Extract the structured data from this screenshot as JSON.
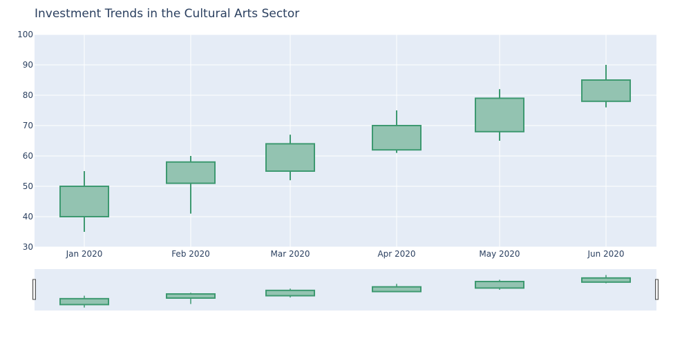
{
  "chart_data": {
    "type": "candlestick",
    "title": "Investment Trends in the Cultural Arts Sector",
    "xlabel": "",
    "ylabel": "",
    "categories": [
      "Jan 2020",
      "Feb 2020",
      "Mar 2020",
      "Apr 2020",
      "May 2020",
      "Jun 2020"
    ],
    "ohlc": [
      {
        "open": 40,
        "high": 55,
        "low": 35,
        "close": 50
      },
      {
        "open": 51,
        "high": 60,
        "low": 41,
        "close": 58
      },
      {
        "open": 55,
        "high": 67,
        "low": 52,
        "close": 64
      },
      {
        "open": 62,
        "high": 75,
        "low": 61,
        "close": 70
      },
      {
        "open": 68,
        "high": 82,
        "low": 65,
        "close": 79
      },
      {
        "open": 78,
        "high": 90,
        "low": 76,
        "close": 85
      }
    ],
    "ylim": [
      30,
      100
    ],
    "yticks": [
      30,
      40,
      50,
      60,
      70,
      80,
      90,
      100
    ],
    "grid": true,
    "rangeslider": true,
    "colors": {
      "plot_bg": "#e5ecf6",
      "grid": "#ffffff",
      "increasing_line": "#3d9970",
      "increasing_fill": "#93c3b1",
      "text": "#2a3f5f"
    }
  }
}
